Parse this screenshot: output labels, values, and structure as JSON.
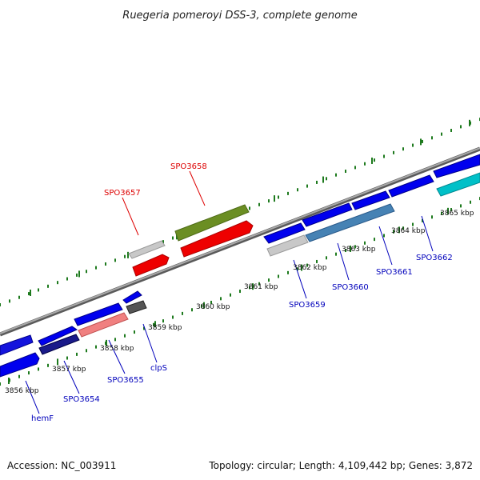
{
  "title": "Ruegeria pomeroyi DSS-3, complete genome",
  "footer": {
    "accession": "Accession: NC_003911",
    "summary": "Topology: circular; Length: 4,109,442 bp; Genes: 3,872"
  },
  "colors": {
    "backbone": "#8c8c8c",
    "tick": "#1e7a1e",
    "label_plus": "#dd0000",
    "label_minus": "#0000bb",
    "tick_text": "#111111"
  },
  "scale_ticks": [
    "3856 kbp",
    "3857 kbp",
    "3858 kbp",
    "3859 kbp",
    "3860 kbp",
    "3861 kbp",
    "3862 kbp",
    "3863 kbp",
    "3864 kbp",
    "3865 kbp"
  ],
  "gene_labels_plus": [
    "SPO3657",
    "SPO3658"
  ],
  "gene_labels_minus": [
    "hemF",
    "SPO3654",
    "SPO3655",
    "clpS",
    "SPO3659",
    "SPO3660",
    "SPO3661",
    "SPO3662"
  ]
}
